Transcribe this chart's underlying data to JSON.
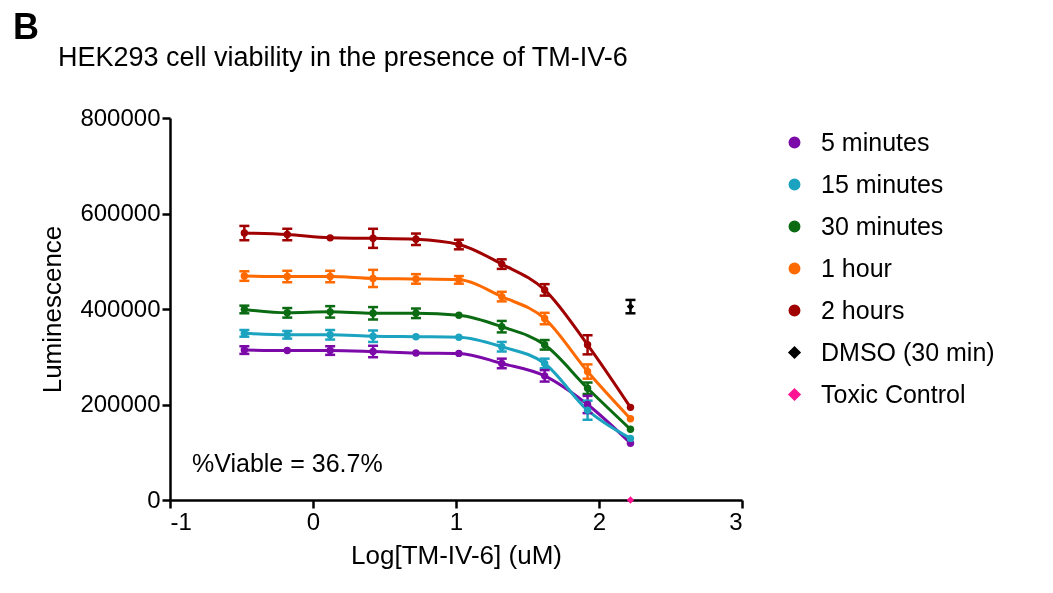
{
  "chart_data": {
    "type": "line",
    "title": "HEK293 cell viability in the presence of TM-IV-6",
    "xlabel": "Log[TM-IV-6] (uM)",
    "ylabel": "Luminescence",
    "annotations": [
      "B",
      "%Viable = 36.7%"
    ],
    "x": [
      -0.48,
      -0.18,
      0.12,
      0.42,
      0.72,
      1.02,
      1.32,
      1.62,
      1.92,
      2.22
    ],
    "series": [
      {
        "name": "5 minutes",
        "color": "#7b0aa8",
        "marker": "circle",
        "values": [
          314000,
          313000,
          313000,
          311000,
          308000,
          307000,
          286000,
          260000,
          200000,
          119000
        ],
        "errors": [
          8000,
          null,
          9000,
          12000,
          null,
          null,
          10000,
          12000,
          18000,
          null
        ]
      },
      {
        "name": "15 minutes",
        "color": "#1ba3c0",
        "marker": "circle",
        "values": [
          349000,
          346000,
          346000,
          343000,
          342000,
          341000,
          321000,
          286000,
          188000,
          129000
        ],
        "errors": [
          7000,
          8000,
          10000,
          12000,
          null,
          null,
          10000,
          10000,
          20000,
          null
        ]
      },
      {
        "name": "30 minutes",
        "color": "#0b6b12",
        "marker": "circle",
        "values": [
          399000,
          392000,
          394000,
          391000,
          391000,
          387000,
          363000,
          325000,
          234000,
          148000
        ],
        "errors": [
          8000,
          10000,
          12000,
          13000,
          10000,
          null,
          12000,
          10000,
          12000,
          null
        ]
      },
      {
        "name": "1 hour",
        "color": "#ff6a00",
        "marker": "circle",
        "values": [
          469000,
          468000,
          468000,
          464000,
          463000,
          461000,
          426000,
          380000,
          269000,
          170000
        ],
        "errors": [
          10000,
          12000,
          12000,
          18000,
          10000,
          8000,
          10000,
          12000,
          15000,
          null
        ]
      },
      {
        "name": "2 hours",
        "color": "#a00000",
        "marker": "circle",
        "values": [
          559000,
          556000,
          549000,
          548000,
          546000,
          535000,
          494000,
          440000,
          325000,
          194000
        ],
        "errors": [
          15000,
          12000,
          null,
          20000,
          12000,
          10000,
          10000,
          12000,
          20000,
          null
        ]
      },
      {
        "name": "DMSO (30 min)",
        "type": "scatter",
        "color": "#000000",
        "marker": "diamond",
        "x": [
          2.22
        ],
        "values": [
          405000
        ],
        "errors": [
          14000
        ]
      },
      {
        "name": "Toxic Control",
        "type": "scatter",
        "color": "#ff1493",
        "marker": "diamond",
        "x": [
          2.22
        ],
        "values": [
          0
        ]
      }
    ],
    "xlim": [
      -1,
      3
    ],
    "xticks": [
      {
        "value": -1,
        "label": "-1"
      },
      0,
      1,
      2,
      3
    ],
    "ylim": [
      0,
      800000
    ],
    "yticks": [
      0,
      200000,
      400000,
      600000,
      800000
    ],
    "grid": false,
    "legend": "right"
  }
}
